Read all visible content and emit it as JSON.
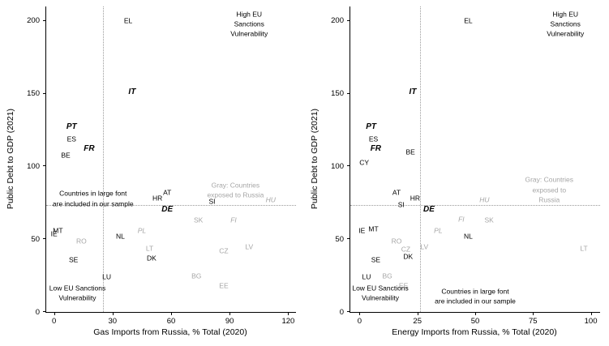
{
  "figure": {
    "background": "#ffffff",
    "text_color": "#000000",
    "gray_label_color": "#a6a6a6",
    "reference_line_color": "#9a9a9a"
  },
  "chart_data": [
    {
      "type": "scatter",
      "panel": "left",
      "xlabel": "Gas Imports from Russia, % Total (2020)",
      "ylabel": "Public Debt to GDP (2021)",
      "xticks": [
        0,
        30,
        60,
        90,
        120
      ],
      "yticks": [
        0,
        50,
        100,
        150,
        200
      ],
      "xrange": [
        -4,
        124
      ],
      "yrange": [
        0,
        210
      ],
      "ref_vline_x": 25,
      "ref_hline_y": 73,
      "points": [
        {
          "label": "EL",
          "x": 38,
          "y": 200,
          "style": "plain"
        },
        {
          "label": "IT",
          "x": 40,
          "y": 151,
          "style": "sample"
        },
        {
          "label": "PT",
          "x": 9,
          "y": 127,
          "style": "sample"
        },
        {
          "label": "ES",
          "x": 9,
          "y": 119,
          "style": "plain"
        },
        {
          "label": "FR",
          "x": 18,
          "y": 112,
          "style": "sample"
        },
        {
          "label": "BE",
          "x": 6,
          "y": 108,
          "style": "plain"
        },
        {
          "label": "AT",
          "x": 58,
          "y": 82,
          "style": "plain"
        },
        {
          "label": "HR",
          "x": 53,
          "y": 78,
          "style": "plain"
        },
        {
          "label": "SI",
          "x": 81,
          "y": 76,
          "style": "plain"
        },
        {
          "label": "HU",
          "x": 111,
          "y": 77,
          "style": "gray-italic"
        },
        {
          "label": "DE",
          "x": 58,
          "y": 70,
          "style": "sample"
        },
        {
          "label": "SK",
          "x": 74,
          "y": 63,
          "style": "gray"
        },
        {
          "label": "FI",
          "x": 92,
          "y": 63,
          "style": "gray-italic"
        },
        {
          "label": "PL",
          "x": 45,
          "y": 56,
          "style": "gray-italic"
        },
        {
          "label": "IE",
          "x": 0,
          "y": 54,
          "style": "plain"
        },
        {
          "label": "MT",
          "x": 2,
          "y": 56,
          "style": "plain"
        },
        {
          "label": "RO",
          "x": 14,
          "y": 49,
          "style": "gray"
        },
        {
          "label": "NL",
          "x": 34,
          "y": 52,
          "style": "plain"
        },
        {
          "label": "LT",
          "x": 49,
          "y": 44,
          "style": "gray"
        },
        {
          "label": "LV",
          "x": 100,
          "y": 45,
          "style": "gray"
        },
        {
          "label": "CZ",
          "x": 87,
          "y": 42,
          "style": "gray"
        },
        {
          "label": "SE",
          "x": 10,
          "y": 36,
          "style": "plain"
        },
        {
          "label": "DK",
          "x": 50,
          "y": 37,
          "style": "plain"
        },
        {
          "label": "LU",
          "x": 27,
          "y": 24,
          "style": "plain"
        },
        {
          "label": "BG",
          "x": 73,
          "y": 25,
          "style": "gray"
        },
        {
          "label": "EE",
          "x": 87,
          "y": 18,
          "style": "gray"
        }
      ],
      "annotations": [
        {
          "name": "high-vulnerability-note",
          "lines": "High EU Sanctions\nVulnerability",
          "x": 100,
          "y": 198,
          "style": "black"
        },
        {
          "name": "gray-countries-note",
          "lines": "Gray: Countries\nexposed to Russia",
          "x": 93,
          "y": 84,
          "style": "gray"
        },
        {
          "name": "sample-countries-note",
          "lines": "Countries in large font\nare included in our sample",
          "x": 20,
          "y": 78,
          "style": "black"
        },
        {
          "name": "low-vulnerability-note",
          "lines": "Low EU Sanctions\nVulnerability",
          "x": 12,
          "y": 13,
          "style": "black"
        }
      ]
    },
    {
      "type": "scatter",
      "panel": "right",
      "xlabel": "Energy Imports from Russia, % Total (2020)",
      "ylabel": "Public Debt to GDP (2021)",
      "xticks": [
        0,
        25,
        50,
        75,
        100
      ],
      "yticks": [
        0,
        50,
        100,
        150,
        200
      ],
      "xrange": [
        -4,
        104
      ],
      "yrange": [
        0,
        210
      ],
      "ref_vline_x": 26,
      "ref_hline_y": 73,
      "points": [
        {
          "label": "EL",
          "x": 47,
          "y": 200,
          "style": "plain"
        },
        {
          "label": "IT",
          "x": 23,
          "y": 151,
          "style": "sample"
        },
        {
          "label": "PT",
          "x": 5,
          "y": 127,
          "style": "sample"
        },
        {
          "label": "ES",
          "x": 6,
          "y": 119,
          "style": "plain"
        },
        {
          "label": "FR",
          "x": 7,
          "y": 112,
          "style": "sample"
        },
        {
          "label": "BE",
          "x": 22,
          "y": 110,
          "style": "plain"
        },
        {
          "label": "CY",
          "x": 2,
          "y": 103,
          "style": "plain"
        },
        {
          "label": "AT",
          "x": 16,
          "y": 82,
          "style": "plain"
        },
        {
          "label": "HR",
          "x": 24,
          "y": 78,
          "style": "plain"
        },
        {
          "label": "SI",
          "x": 18,
          "y": 74,
          "style": "plain"
        },
        {
          "label": "HU",
          "x": 54,
          "y": 77,
          "style": "gray-italic"
        },
        {
          "label": "DE",
          "x": 30,
          "y": 70,
          "style": "sample"
        },
        {
          "label": "SK",
          "x": 56,
          "y": 63,
          "style": "gray"
        },
        {
          "label": "FI",
          "x": 44,
          "y": 64,
          "style": "gray-italic"
        },
        {
          "label": "PL",
          "x": 34,
          "y": 56,
          "style": "gray-italic"
        },
        {
          "label": "IE",
          "x": 1,
          "y": 56,
          "style": "plain"
        },
        {
          "label": "MT",
          "x": 6,
          "y": 57,
          "style": "plain"
        },
        {
          "label": "RO",
          "x": 16,
          "y": 49,
          "style": "gray"
        },
        {
          "label": "NL",
          "x": 47,
          "y": 52,
          "style": "plain"
        },
        {
          "label": "LV",
          "x": 28,
          "y": 45,
          "style": "gray"
        },
        {
          "label": "CZ",
          "x": 20,
          "y": 43,
          "style": "gray"
        },
        {
          "label": "LT",
          "x": 97,
          "y": 44,
          "style": "gray"
        },
        {
          "label": "SE",
          "x": 7,
          "y": 36,
          "style": "plain"
        },
        {
          "label": "DK",
          "x": 21,
          "y": 38,
          "style": "plain"
        },
        {
          "label": "LU",
          "x": 3,
          "y": 24,
          "style": "plain"
        },
        {
          "label": "BG",
          "x": 12,
          "y": 25,
          "style": "gray"
        },
        {
          "label": "EE",
          "x": 19,
          "y": 18,
          "style": "gray"
        }
      ],
      "annotations": [
        {
          "name": "high-vulnerability-note",
          "lines": "High EU Sanctions\nVulnerability",
          "x": 89,
          "y": 198,
          "style": "black"
        },
        {
          "name": "gray-countries-note",
          "lines": "Gray: Countries\nexposed to Russia",
          "x": 82,
          "y": 84,
          "style": "gray"
        },
        {
          "name": "low-vulnerability-note",
          "lines": "Low EU Sanctions\nVulnerability",
          "x": 9,
          "y": 13,
          "style": "black"
        },
        {
          "name": "sample-countries-note",
          "lines": "Countries in large font\nare included in our sample",
          "x": 50,
          "y": 11,
          "style": "black"
        }
      ]
    }
  ]
}
